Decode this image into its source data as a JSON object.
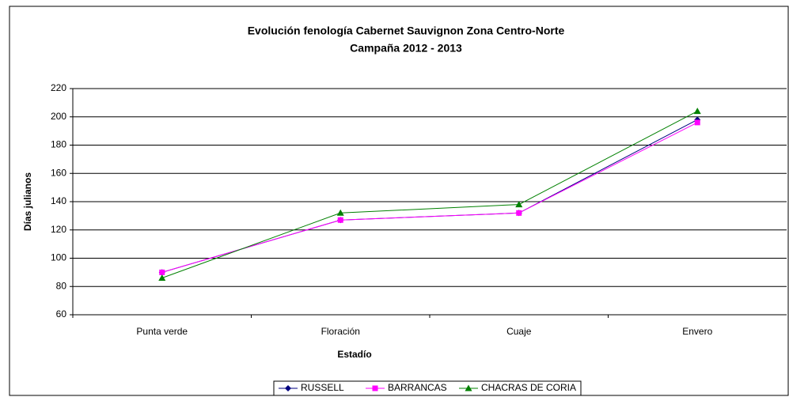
{
  "chart_data": {
    "type": "line",
    "title": "Evolución fenología Cabernet Sauvignon Zona Centro-Norte",
    "subtitle": "Campaña 2012 - 2013",
    "x_label": "Estadío",
    "y_label": "Días julianos",
    "categories": [
      "Punta verde",
      "Floración",
      "Cuaje",
      "Envero"
    ],
    "series": [
      {
        "name": "RUSSELL",
        "color": "#000080",
        "marker": "diamond",
        "values": [
          90,
          127,
          132,
          198
        ]
      },
      {
        "name": "BARRANCAS",
        "color": "#ff00ff",
        "marker": "square",
        "values": [
          90,
          127,
          132,
          196
        ]
      },
      {
        "name": "CHACRAS DE CORIA",
        "color": "#008000",
        "marker": "triangle",
        "values": [
          86,
          132,
          138,
          204
        ]
      }
    ],
    "ylim": [
      60,
      220
    ],
    "yticks": [
      60,
      80,
      100,
      120,
      140,
      160,
      180,
      200,
      220
    ],
    "grid": true,
    "legend": "bottom"
  }
}
